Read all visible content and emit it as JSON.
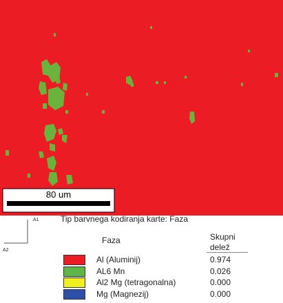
{
  "map": {
    "scale_bar": "80 um",
    "axis_1": "A1",
    "axis_2": "A2"
  },
  "legend": {
    "title": "Tip barvnega kodiranja karte: Faza",
    "header": [
      "Faza",
      "Skupni delež"
    ],
    "rows": [
      {
        "color": "#ec1c24",
        "name": "Al (Aluminij)",
        "fraction": "0.974"
      },
      {
        "color": "#5cb846",
        "name": "AL6 Mn",
        "fraction": "0.026"
      },
      {
        "color": "#f2ef1e",
        "name": "Al2 Mg (tetragonalna)",
        "fraction": "0.000"
      },
      {
        "color": "#2e4fa8",
        "name": "Mg (Magnezij)",
        "fraction": "0.000"
      }
    ]
  }
}
